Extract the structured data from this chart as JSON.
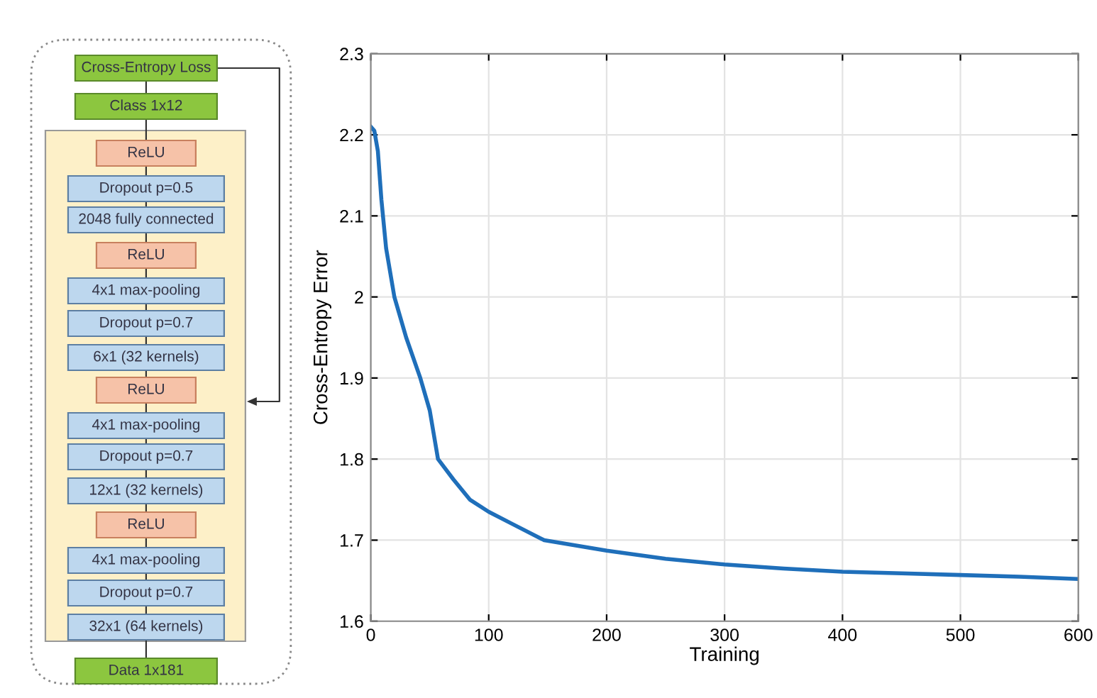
{
  "chart_data": [
    {
      "type": "other",
      "annotations": [
        "Cross-Entropy Loss",
        "Class 1x12",
        "ReLU",
        "Dropout p=0.5",
        "2048 fully connected",
        "ReLU",
        "4x1 max-pooling",
        "Dropout p=0.7",
        "6x1 (32 kernels)",
        "ReLU",
        "4x1 max-pooling",
        "Dropout p=0.7",
        "12x1 (32 kernels)",
        "ReLU",
        "4x1 max-pooling",
        "Dropout p=0.7",
        "32x1 (64 kernels)",
        "Data 1x181"
      ]
    },
    {
      "type": "line",
      "xlabel": "Training",
      "ylabel": "Cross-Entropy Error",
      "x": [
        0,
        3,
        6,
        9,
        13,
        20,
        30,
        42,
        50,
        57,
        70,
        84,
        100,
        120,
        147,
        200,
        250,
        300,
        350,
        400,
        450,
        500,
        550,
        600
      ],
      "series": [
        {
          "color": "#1f6fba",
          "values": [
            2.21,
            2.205,
            2.18,
            2.12,
            2.06,
            2.0,
            1.95,
            1.9,
            1.86,
            1.8,
            1.775,
            1.75,
            1.735,
            1.72,
            1.7,
            1.687,
            1.677,
            1.67,
            1.665,
            1.661,
            1.659,
            1.657,
            1.655,
            1.652
          ]
        }
      ],
      "xlim": [
        0,
        600
      ],
      "xticks": [
        0,
        100,
        200,
        300,
        400,
        500,
        600
      ],
      "ylim": [
        1.6,
        2.3
      ],
      "yticks": [
        1.6,
        1.7,
        1.8,
        1.9,
        2,
        2.1,
        2.2,
        2.3
      ],
      "grid": true,
      "line_style": "solid",
      "marker": "none"
    }
  ]
}
